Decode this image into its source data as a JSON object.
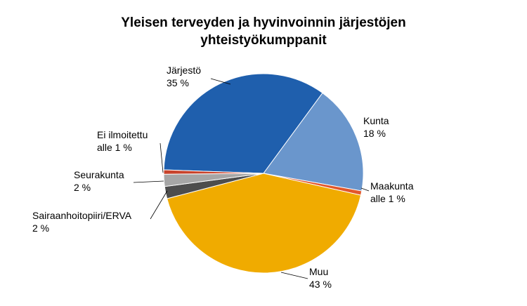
{
  "chart_data": {
    "type": "pie",
    "title": "Yleisen terveyden ja hyvinvoinnin järjestöjen yhteistyökumppanit",
    "categories": [
      "Järjestö",
      "Kunta",
      "Maakunta",
      "Muu",
      "Sairaanhoitopiiri/ERVA",
      "Seurakunta",
      "Ei ilmoitettu"
    ],
    "values": [
      35,
      18,
      0.7,
      43,
      2,
      2,
      0.7
    ],
    "value_labels": [
      "35 %",
      "18 %",
      "alle 1 %",
      "43 %",
      "2 %",
      "2 %",
      "alle 1 %"
    ],
    "colors": [
      "#1f5fad",
      "#6a96cc",
      "#e2572b",
      "#f0ab00",
      "#4d4d4d",
      "#a6a6a6",
      "#c8432b"
    ]
  }
}
